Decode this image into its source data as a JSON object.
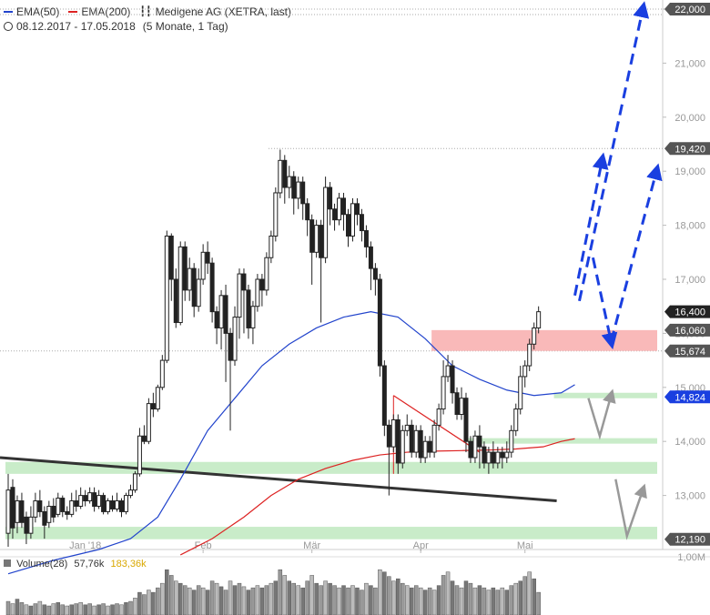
{
  "header": {
    "ema50_label": "EMA(50)",
    "ema200_label": "EMA(200)",
    "instrument": "Medigene AG (XETRA, last)",
    "period": "08.12.2017 - 17.05.2018",
    "interval": "(5 Monate, 1 Tag)",
    "colors": {
      "ema50": "#2244cc",
      "ema200": "#dd2222"
    }
  },
  "volume_legend": {
    "label": "Volume(28)",
    "value1": "57,76k",
    "value2": "183,36k"
  },
  "chart_data": {
    "type": "candlestick",
    "y_axis": {
      "min": 12000,
      "max": 22000,
      "ticks": [
        {
          "value": 13000,
          "label": "13,000"
        },
        {
          "value": 14000,
          "label": "14,000"
        },
        {
          "value": 15000,
          "label": "15,000"
        },
        {
          "value": 16000,
          "label": "16,000"
        },
        {
          "value": 17000,
          "label": "17,000"
        },
        {
          "value": 18000,
          "label": "18,000"
        },
        {
          "value": 19000,
          "label": "19,000"
        },
        {
          "value": 20000,
          "label": "20,000"
        },
        {
          "value": 21000,
          "label": "21,000"
        },
        {
          "value": 22000,
          "label": "22,000"
        }
      ]
    },
    "x_axis": {
      "ticks": [
        {
          "idx": 17,
          "label": "Jan '18"
        },
        {
          "idx": 43,
          "label": "Feb"
        },
        {
          "idx": 67,
          "label": "Mär"
        },
        {
          "idx": 91,
          "label": "Apr"
        },
        {
          "idx": 114,
          "label": "Mai"
        }
      ]
    },
    "price_tags": [
      {
        "value": 22000,
        "label": "22,000",
        "style": "dark"
      },
      {
        "value": 19420,
        "label": "19,420",
        "style": "dark"
      },
      {
        "value": 16400,
        "label": "16,400",
        "style": "black"
      },
      {
        "value": 16060,
        "label": "16,060",
        "style": "dark"
      },
      {
        "value": 15674,
        "label": "15,674",
        "style": "dark"
      },
      {
        "value": 14824,
        "label": "14,824",
        "style": "blue"
      },
      {
        "value": 12190,
        "label": "12,190",
        "style": "dark"
      }
    ],
    "volume_axis": {
      "label": "1,00M"
    },
    "zones": [
      {
        "low": 15674,
        "high": 16060,
        "color": "#f9b9b9",
        "x_from_idx": 94
      },
      {
        "low": 14824,
        "high": 14900,
        "color": "#c9ecc9",
        "x_from_idx": 121
      },
      {
        "low": 14000,
        "high": 14060,
        "color": "#c9ecc9",
        "x_from_idx": 102
      },
      {
        "low": 13400,
        "high": 13620,
        "color": "#c9ecc9",
        "x_from_idx": 0
      },
      {
        "low": 12190,
        "high": 12420,
        "color": "#c9ecc9",
        "x_from_idx": 0
      }
    ],
    "candles": [
      [
        12300,
        13100,
        12050,
        13400
      ],
      [
        13150,
        12400,
        12200,
        13300
      ],
      [
        12500,
        12900,
        12300,
        13000
      ],
      [
        12900,
        12500,
        12400,
        13050
      ],
      [
        12600,
        12300,
        12100,
        12700
      ],
      [
        12300,
        12600,
        12200,
        12800
      ],
      [
        12600,
        12900,
        12500,
        13050
      ],
      [
        12900,
        12700,
        12600,
        13100
      ],
      [
        12700,
        12450,
        12200,
        12800
      ],
      [
        12500,
        12800,
        12400,
        12900
      ],
      [
        12800,
        12600,
        12500,
        12950
      ],
      [
        12650,
        12950,
        12600,
        13050
      ],
      [
        12950,
        12700,
        12600,
        13000
      ],
      [
        12700,
        12650,
        12550,
        12800
      ],
      [
        12650,
        12900,
        12600,
        13050
      ],
      [
        12900,
        12800,
        12700,
        13100
      ],
      [
        12800,
        13000,
        12750,
        13150
      ],
      [
        13000,
        12900,
        12800,
        13100
      ],
      [
        12900,
        13050,
        12850,
        13150
      ],
      [
        13050,
        12800,
        12700,
        13150
      ],
      [
        12800,
        13000,
        12750,
        13100
      ],
      [
        13000,
        12700,
        12650,
        13050
      ],
      [
        12700,
        12900,
        12650,
        12950
      ],
      [
        12900,
        12750,
        12700,
        13000
      ],
      [
        12750,
        12900,
        12700,
        13050
      ],
      [
        12900,
        12700,
        12600,
        12950
      ],
      [
        12700,
        13000,
        12650,
        13050
      ],
      [
        13000,
        13100,
        12950,
        13200
      ],
      [
        13100,
        13400,
        13050,
        13450
      ],
      [
        13400,
        14100,
        13350,
        14250
      ],
      [
        14100,
        14000,
        13950,
        14300
      ],
      [
        14000,
        14700,
        13950,
        14800
      ],
      [
        14700,
        14600,
        14450,
        14900
      ],
      [
        14600,
        15000,
        14550,
        15050
      ],
      [
        15000,
        15500,
        14950,
        15600
      ],
      [
        15500,
        17800,
        15450,
        17900
      ],
      [
        17800,
        17000,
        16600,
        17850
      ],
      [
        17000,
        16200,
        16100,
        17200
      ],
      [
        16200,
        17600,
        16150,
        17700
      ],
      [
        17600,
        16800,
        16600,
        17700
      ],
      [
        16800,
        17200,
        16600,
        17400
      ],
      [
        17200,
        16500,
        16300,
        17300
      ],
      [
        16500,
        17000,
        16400,
        17200
      ],
      [
        17000,
        17500,
        16900,
        17650
      ],
      [
        17500,
        17300,
        17100,
        17700
      ],
      [
        17300,
        16400,
        16200,
        17400
      ],
      [
        16400,
        16100,
        15800,
        16500
      ],
      [
        16100,
        16700,
        15700,
        16800
      ],
      [
        16700,
        16000,
        15100,
        16900
      ],
      [
        16000,
        15500,
        14200,
        16100
      ],
      [
        15500,
        16300,
        15400,
        16500
      ],
      [
        16300,
        17100,
        15900,
        17200
      ],
      [
        17100,
        16800,
        16000,
        17200
      ],
      [
        16800,
        16100,
        15900,
        16900
      ],
      [
        16100,
        16500,
        15800,
        16600
      ],
      [
        16500,
        17000,
        16400,
        17100
      ],
      [
        17000,
        16800,
        16500,
        17100
      ],
      [
        16800,
        17400,
        16700,
        17500
      ],
      [
        17400,
        17800,
        17300,
        17900
      ],
      [
        17800,
        18600,
        17700,
        18700
      ],
      [
        18600,
        19200,
        18500,
        19400
      ],
      [
        19200,
        18700,
        18400,
        19300
      ],
      [
        18700,
        18900,
        18500,
        19100
      ],
      [
        18900,
        18500,
        18200,
        19000
      ],
      [
        18500,
        18800,
        18300,
        18900
      ],
      [
        18800,
        18400,
        18100,
        18900
      ],
      [
        18400,
        18100,
        17800,
        18500
      ],
      [
        18100,
        17500,
        16900,
        18200
      ],
      [
        17500,
        18000,
        17400,
        18100
      ],
      [
        18000,
        17400,
        16200,
        18100
      ],
      [
        17400,
        18700,
        17300,
        18900
      ],
      [
        18700,
        18300,
        18000,
        18800
      ],
      [
        18300,
        18100,
        17900,
        18400
      ],
      [
        18100,
        18500,
        18000,
        18600
      ],
      [
        18500,
        18200,
        17900,
        18600
      ],
      [
        18200,
        17800,
        17600,
        18300
      ],
      [
        17800,
        18400,
        17700,
        18500
      ],
      [
        18400,
        18200,
        18000,
        18500
      ],
      [
        18200,
        17900,
        17700,
        18300
      ],
      [
        17900,
        17600,
        17400,
        18000
      ],
      [
        17600,
        17200,
        16800,
        17700
      ],
      [
        17200,
        17000,
        16700,
        17300
      ],
      [
        17000,
        15400,
        15200,
        17100
      ],
      [
        15400,
        14300,
        14100,
        15500
      ],
      [
        14300,
        13900,
        13000,
        14400
      ],
      [
        13900,
        14400,
        13800,
        14500
      ],
      [
        14400,
        13600,
        13400,
        14500
      ],
      [
        13600,
        14200,
        13500,
        14300
      ],
      [
        14200,
        14300,
        14100,
        14500
      ],
      [
        14300,
        13800,
        13700,
        14400
      ],
      [
        13800,
        14200,
        13700,
        14300
      ],
      [
        14200,
        13700,
        13600,
        14300
      ],
      [
        13700,
        14000,
        13600,
        14100
      ],
      [
        14000,
        13800,
        13700,
        14100
      ],
      [
        13800,
        14300,
        13700,
        14400
      ],
      [
        14300,
        14600,
        14200,
        14700
      ],
      [
        14600,
        15200,
        14500,
        15500
      ],
      [
        15200,
        15400,
        15100,
        15600
      ],
      [
        15400,
        14900,
        14700,
        15500
      ],
      [
        14900,
        14500,
        14400,
        15000
      ],
      [
        14500,
        14800,
        14400,
        15000
      ],
      [
        14800,
        14000,
        13800,
        14900
      ],
      [
        14000,
        13700,
        13600,
        14100
      ],
      [
        13700,
        14100,
        13600,
        14200
      ],
      [
        14100,
        13900,
        13500,
        14300
      ],
      [
        13900,
        13600,
        13500,
        14000
      ],
      [
        13600,
        13800,
        13400,
        13900
      ],
      [
        13800,
        13600,
        13500,
        14000
      ],
      [
        13600,
        13800,
        13500,
        13900
      ],
      [
        13800,
        13700,
        13500,
        13900
      ],
      [
        13700,
        13800,
        13600,
        14000
      ],
      [
        13800,
        14200,
        13700,
        14300
      ],
      [
        14200,
        14600,
        14100,
        14700
      ],
      [
        14600,
        15200,
        14500,
        15400
      ],
      [
        15200,
        15400,
        15000,
        15500
      ],
      [
        15400,
        15800,
        15300,
        15900
      ],
      [
        15800,
        16100,
        15700,
        16200
      ],
      [
        16100,
        16400,
        16000,
        16500
      ]
    ],
    "ema50": [
      [
        0,
        11550
      ],
      [
        10,
        11800
      ],
      [
        20,
        12000
      ],
      [
        27,
        12200
      ],
      [
        33,
        12600
      ],
      [
        38,
        13300
      ],
      [
        44,
        14200
      ],
      [
        50,
        14800
      ],
      [
        56,
        15400
      ],
      [
        62,
        15800
      ],
      [
        68,
        16100
      ],
      [
        74,
        16300
      ],
      [
        80,
        16400
      ],
      [
        86,
        16300
      ],
      [
        92,
        15900
      ],
      [
        98,
        15400
      ],
      [
        104,
        15150
      ],
      [
        110,
        14950
      ],
      [
        116,
        14850
      ],
      [
        122,
        14900
      ],
      [
        125,
        15050
      ]
    ],
    "ema200": [
      [
        38,
        11900
      ],
      [
        45,
        12200
      ],
      [
        52,
        12600
      ],
      [
        58,
        13000
      ],
      [
        64,
        13300
      ],
      [
        70,
        13500
      ],
      [
        76,
        13650
      ],
      [
        82,
        13750
      ],
      [
        88,
        13800
      ],
      [
        94,
        13820
      ],
      [
        100,
        13830
      ],
      [
        106,
        13840
      ],
      [
        112,
        13860
      ],
      [
        118,
        13900
      ],
      [
        122,
        14000
      ],
      [
        125,
        14050
      ]
    ],
    "annotations": {
      "support_line": {
        "from": [
          0,
          13700
        ],
        "to": [
          121,
          12900
        ],
        "color": "#333333"
      },
      "triangle_line": {
        "from": [
          85,
          14850
        ],
        "to": [
          104,
          13800
        ],
        "color": "#dd2222"
      },
      "blue_arrows": [
        {
          "from": [
            126,
            16600
          ],
          "to": [
            140,
            22000
          ]
        },
        {
          "from": [
            129,
            15400
          ],
          "to": [
            133,
            15850
          ]
        },
        {
          "from": [
            133,
            15850
          ],
          "to": [
            143,
            19000
          ]
        }
      ],
      "blue_up_arrow_2": {
        "from": [
          125,
          16700
        ],
        "to": [
          131,
          19200
        ]
      },
      "grey_arrows": [
        {
          "from": [
            130,
            14200
          ],
          "to": [
            133,
            14800
          ]
        },
        {
          "from": [
            137,
            12300
          ],
          "to": [
            141,
            13100
          ]
        }
      ]
    },
    "volume": [
      12,
      10,
      14,
      11,
      9,
      8,
      10,
      12,
      9,
      8,
      10,
      11,
      9,
      8,
      9,
      10,
      11,
      9,
      10,
      8,
      9,
      10,
      8,
      9,
      10,
      9,
      11,
      12,
      15,
      20,
      18,
      22,
      20,
      24,
      28,
      40,
      35,
      30,
      28,
      26,
      24,
      22,
      26,
      24,
      22,
      30,
      28,
      25,
      22,
      30,
      26,
      28,
      25,
      22,
      24,
      26,
      24,
      26,
      28,
      30,
      40,
      35,
      30,
      28,
      26,
      24,
      30,
      35,
      28,
      26,
      30,
      28,
      26,
      24,
      26,
      24,
      26,
      24,
      22,
      28,
      26,
      24,
      40,
      38,
      34,
      30,
      32,
      28,
      26,
      24,
      26,
      24,
      22,
      24,
      22,
      26,
      35,
      38,
      30,
      26,
      24,
      30,
      28,
      24,
      26,
      24,
      22,
      24,
      22,
      24,
      22,
      26,
      28,
      30,
      34,
      38,
      32,
      20
    ]
  }
}
